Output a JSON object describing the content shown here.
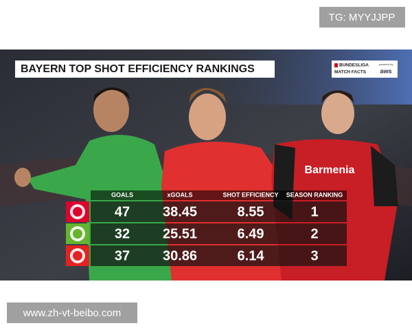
{
  "watermark_top": "TG: MYYJJPP",
  "watermark_bottom": "www.zh-vt-beibo.com",
  "header": {
    "title": "BAYERN TOP SHOT EFFICIENCY RANKINGS",
    "logo": [
      "BUNDESLIGA",
      "MATCH FACTS"
    ],
    "powered_by": "powered by",
    "aws": "aws"
  },
  "jersey_text": "Barmenia",
  "table": {
    "columns": [
      "GOALS",
      "xGOALS",
      "SHOT EFFICIENCY",
      "SEASON RANKING"
    ],
    "rows": [
      [
        47,
        38.45,
        8.55,
        1
      ],
      [
        32,
        25.51,
        6.49,
        2
      ],
      [
        37,
        30.86,
        6.14,
        3
      ]
    ]
  }
}
